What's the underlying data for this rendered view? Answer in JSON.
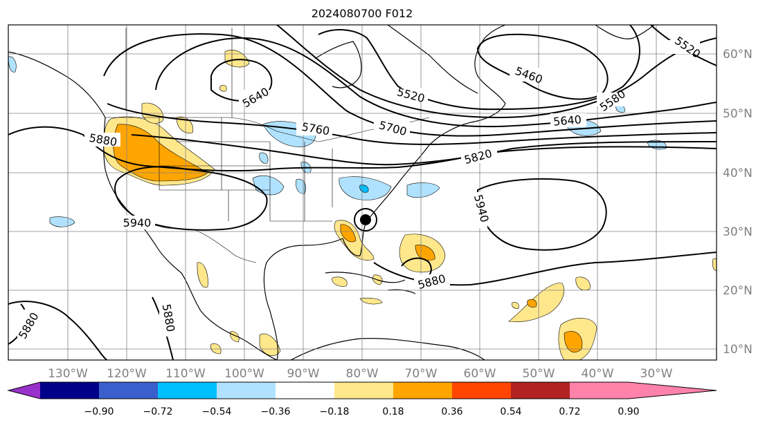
{
  "title": "2024080700 F012",
  "lon_labels": [
    "130°W",
    "120°W",
    "110°W",
    "100°W",
    "90°W",
    "80°W",
    "70°W",
    "60°W",
    "50°W",
    "40°W",
    "30°W"
  ],
  "lat_labels": [
    "60°N",
    "50°N",
    "40°N",
    "30°N",
    "20°N",
    "10°N"
  ],
  "contour_labels": [
    "5520",
    "5460",
    "5520",
    "5580",
    "5640",
    "5640",
    "5700",
    "5760",
    "5820",
    "5880",
    "5940",
    "5940",
    "5880",
    "5880",
    "5880"
  ],
  "colorbar": {
    "ticks": [
      "−0.90",
      "−0.72",
      "−0.54",
      "−0.36",
      "−0.18",
      "0.18",
      "0.36",
      "0.54",
      "0.72",
      "0.90"
    ],
    "colors": [
      "#9932cc",
      "#00008b",
      "#3a5fcd",
      "#00bfff",
      "#b0e2ff",
      "#ffffff",
      "#ffe78c",
      "#ffa500",
      "#ff4500",
      "#b22222",
      "#ff82ab"
    ]
  },
  "map": {
    "extent": {
      "lon": [
        -139,
        -19
      ],
      "lat": [
        7,
        65
      ]
    },
    "storm_marker": "hurricane-symbol"
  }
}
